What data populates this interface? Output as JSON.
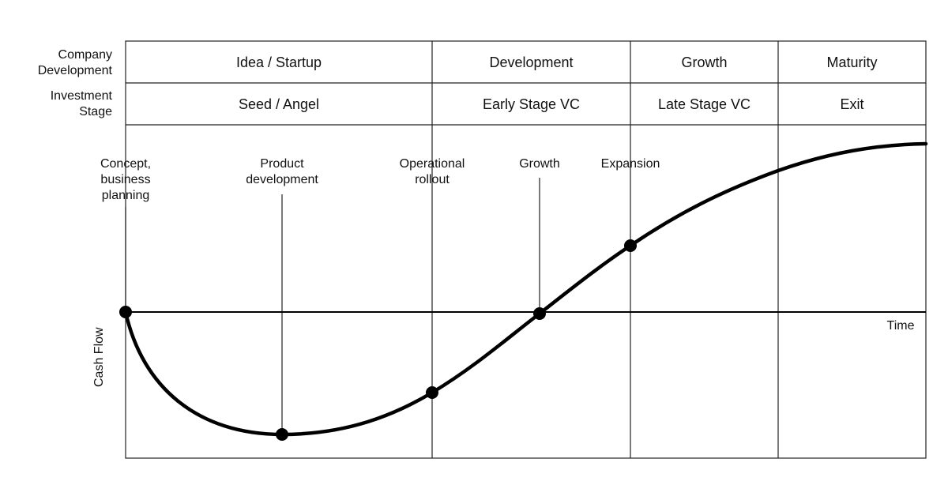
{
  "row_labels": {
    "company_development": "Company\nDevelopment",
    "investment_stage": "Investment\nStage"
  },
  "company_phases": [
    "Idea / Startup",
    "Development",
    "Growth",
    "Maturity"
  ],
  "investment_phases": [
    "Seed / Angel",
    "Early Stage VC",
    "Late Stage VC",
    "Exit"
  ],
  "milestones": [
    {
      "label": "Concept,\nbusiness\nplanning"
    },
    {
      "label": "Product\ndevelopment"
    },
    {
      "label": "Operational\nrollout"
    },
    {
      "label": "Growth"
    },
    {
      "label": "Expansion"
    }
  ],
  "axes": {
    "y_label": "Cash Flow",
    "x_label": "Time"
  },
  "colors": {
    "line": "#000000",
    "grid": "#222222",
    "background": "#ffffff"
  }
}
